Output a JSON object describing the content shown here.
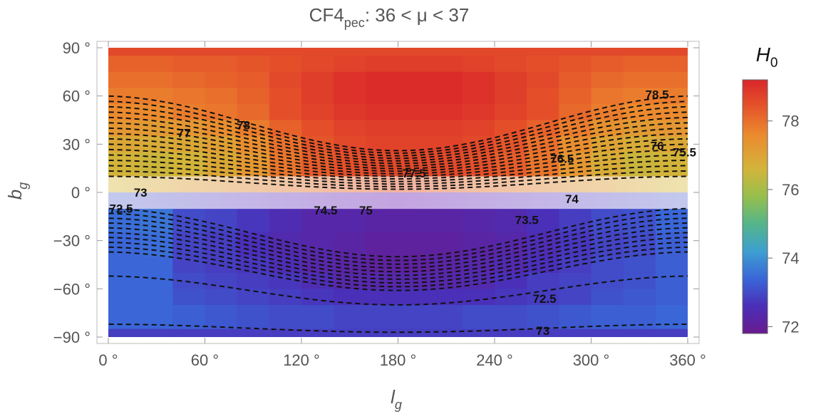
{
  "chart_data": {
    "type": "heatmap",
    "title": {
      "prefix": "CF4",
      "subscript": "pec",
      "suffix": ": 36  <  μ  <  37"
    },
    "xlabel": {
      "main": "l",
      "sub": "g"
    },
    "ylabel": {
      "main": "b",
      "sub": "g"
    },
    "xlim": [
      0,
      360
    ],
    "ylim": [
      -90,
      90
    ],
    "x_ticks": [
      0,
      60,
      120,
      180,
      240,
      300,
      360
    ],
    "x_tick_labels": [
      "0 °",
      "60 °",
      "120 °",
      "180 °",
      "240 °",
      "300 °",
      "360 °"
    ],
    "y_ticks": [
      90,
      60,
      30,
      0,
      -30,
      -60,
      -90
    ],
    "y_tick_labels": [
      "90 °",
      "60 °",
      "30 °",
      "0 °",
      "−30 °",
      "−60 °",
      "−90 °"
    ],
    "colorbar": {
      "label_main": "H",
      "label_sub": "0",
      "range": [
        71.8,
        79.2
      ],
      "ticks": [
        72,
        74,
        76,
        78
      ],
      "tick_labels": [
        "72",
        "74",
        "76",
        "78"
      ],
      "stops": [
        {
          "v": 71.8,
          "c": "#6a1b8f"
        },
        {
          "v": 72.6,
          "c": "#4a2fb8"
        },
        {
          "v": 73.4,
          "c": "#3a66d8"
        },
        {
          "v": 74.2,
          "c": "#3e9fd0"
        },
        {
          "v": 75.0,
          "c": "#54b58a"
        },
        {
          "v": 75.8,
          "c": "#97bf4c"
        },
        {
          "v": 76.6,
          "c": "#d3b43a"
        },
        {
          "v": 77.6,
          "c": "#eb8a2e"
        },
        {
          "v": 78.4,
          "c": "#e5552a"
        },
        {
          "v": 79.2,
          "c": "#d9262a"
        }
      ]
    },
    "heatmap": {
      "lon_bins": 18,
      "lat_rows": [
        {
          "b0": 85,
          "b1": 90,
          "values": [
            78.6,
            78.6,
            78.6,
            78.6,
            78.6,
            78.6,
            78.6,
            78.6,
            78.6,
            78.6,
            78.6,
            78.6,
            78.6,
            78.6,
            78.6,
            78.6,
            78.6,
            78.6
          ]
        },
        {
          "b0": 75,
          "b1": 85,
          "values": [
            78.2,
            78.2,
            78.3,
            78.3,
            78.4,
            78.5,
            78.6,
            78.7,
            78.8,
            78.8,
            78.8,
            78.7,
            78.6,
            78.5,
            78.4,
            78.3,
            78.2,
            78.2
          ]
        },
        {
          "b0": 65,
          "b1": 75,
          "values": [
            78.0,
            78.0,
            78.1,
            78.2,
            78.3,
            78.6,
            78.8,
            79.0,
            79.1,
            79.1,
            79.1,
            79.0,
            78.8,
            78.6,
            78.3,
            78.1,
            78.0,
            78.0
          ]
        },
        {
          "b0": 55,
          "b1": 65,
          "values": [
            77.8,
            77.8,
            77.9,
            78.0,
            78.2,
            78.5,
            78.8,
            79.0,
            79.1,
            79.1,
            79.1,
            79.0,
            78.8,
            78.5,
            78.2,
            77.9,
            77.8,
            77.8
          ]
        },
        {
          "b0": 45,
          "b1": 55,
          "values": [
            77.6,
            77.6,
            77.8,
            77.9,
            78.1,
            78.5,
            78.7,
            78.9,
            79.0,
            79.0,
            79.0,
            78.9,
            78.7,
            78.5,
            78.1,
            77.8,
            77.6,
            77.6
          ]
        },
        {
          "b0": 35,
          "b1": 45,
          "values": [
            77.3,
            77.2,
            77.3,
            77.5,
            77.8,
            78.2,
            78.5,
            78.7,
            78.8,
            78.8,
            78.8,
            78.7,
            78.5,
            78.2,
            77.8,
            77.4,
            77.2,
            77.3
          ]
        },
        {
          "b0": 25,
          "b1": 35,
          "values": [
            76.9,
            76.8,
            76.9,
            77.1,
            77.5,
            78.0,
            78.4,
            78.6,
            78.7,
            78.7,
            78.7,
            78.6,
            78.4,
            78.0,
            77.5,
            77.0,
            76.8,
            76.9
          ]
        },
        {
          "b0": 10,
          "b1": 25,
          "values": [
            76.6,
            76.5,
            76.6,
            76.9,
            77.3,
            77.9,
            78.3,
            78.5,
            78.6,
            78.6,
            78.6,
            78.5,
            78.3,
            77.9,
            77.3,
            76.8,
            76.5,
            76.6
          ]
        }
      ],
      "band_rows": [
        {
          "b0": 0,
          "b1": 10,
          "color_left": "#eee3ae",
          "color_mid": "#f3b3a0",
          "color_right": "#eee3ae"
        },
        {
          "b0": -10,
          "b1": 0,
          "color_left": "#c3c9ee",
          "color_mid": "#c4a4e0",
          "color_right": "#c3c9ee"
        }
      ],
      "south_rows": [
        {
          "b0": -25,
          "b1": -10,
          "values": [
            73.5,
            73.6,
            73.0,
            72.9,
            72.7,
            72.5,
            72.3,
            72.3,
            72.2,
            72.2,
            72.2,
            72.3,
            72.4,
            72.6,
            72.8,
            73.0,
            73.1,
            73.4
          ]
        },
        {
          "b0": -40,
          "b1": -25,
          "values": [
            73.4,
            73.5,
            72.9,
            72.8,
            72.6,
            72.4,
            72.3,
            72.2,
            72.1,
            72.1,
            72.1,
            72.2,
            72.3,
            72.5,
            72.7,
            72.9,
            73.0,
            73.3
          ]
        },
        {
          "b0": -50,
          "b1": -40,
          "values": [
            73.4,
            73.4,
            72.9,
            72.8,
            72.7,
            72.5,
            72.3,
            72.2,
            72.1,
            72.1,
            72.2,
            72.3,
            72.4,
            72.6,
            72.8,
            73.0,
            73.1,
            73.3
          ]
        },
        {
          "b0": -60,
          "b1": -50,
          "values": [
            73.4,
            73.4,
            73.0,
            72.9,
            72.8,
            72.7,
            72.5,
            72.3,
            72.3,
            72.3,
            72.3,
            72.4,
            72.6,
            72.8,
            72.9,
            73.0,
            73.1,
            73.3
          ]
        },
        {
          "b0": -70,
          "b1": -60,
          "values": [
            73.4,
            73.4,
            73.1,
            73.0,
            72.9,
            72.8,
            72.7,
            72.6,
            72.6,
            72.6,
            72.6,
            72.6,
            72.7,
            72.8,
            72.9,
            73.1,
            73.2,
            73.3
          ]
        },
        {
          "b0": -85,
          "b1": -70,
          "values": [
            73.4,
            73.4,
            73.3,
            73.2,
            73.1,
            73.0,
            73.0,
            72.9,
            72.9,
            72.9,
            72.9,
            73.0,
            73.0,
            73.1,
            73.2,
            73.3,
            73.3,
            73.4
          ]
        },
        {
          "b0": -90,
          "b1": -85,
          "values": [
            72.8,
            72.8,
            72.8,
            72.8,
            72.8,
            72.8,
            72.8,
            72.8,
            72.8,
            72.8,
            72.8,
            72.8,
            72.8,
            72.8,
            72.8,
            72.8,
            72.8,
            72.8
          ]
        }
      ]
    },
    "contours": {
      "north": {
        "count": 16,
        "base_top": 60,
        "base_bottom": 10,
        "dip_top": 34,
        "dip_bottom": 8
      },
      "south": {
        "count": 10,
        "base_top": -10,
        "base_bottom": -37,
        "dip_top": 30,
        "dip_bottom": 24
      },
      "extra": [
        {
          "base": -52,
          "dip": 18
        },
        {
          "base": -82,
          "dip": 5
        }
      ]
    },
    "contour_labels": [
      {
        "text": "78.5",
        "l": 341,
        "b": 61
      },
      {
        "text": "78",
        "l": 84,
        "b": 42
      },
      {
        "text": "77",
        "l": 47,
        "b": 37
      },
      {
        "text": "77.5",
        "l": 190,
        "b": 12
      },
      {
        "text": "76.5",
        "l": 282,
        "b": 21
      },
      {
        "text": "76",
        "l": 341,
        "b": 29
      },
      {
        "text": "75.5",
        "l": 358,
        "b": 25
      },
      {
        "text": "73",
        "l": 20,
        "b": 0
      },
      {
        "text": "72.5",
        "l": 8,
        "b": -10
      },
      {
        "text": "74.5",
        "l": 135,
        "b": -11
      },
      {
        "text": "75",
        "l": 160,
        "b": -11
      },
      {
        "text": "74",
        "l": 288,
        "b": -4
      },
      {
        "text": "73.5",
        "l": 260,
        "b": -17
      },
      {
        "text": "72.5",
        "l": 271,
        "b": -66
      },
      {
        "text": "73",
        "l": 270,
        "b": -86
      }
    ]
  }
}
